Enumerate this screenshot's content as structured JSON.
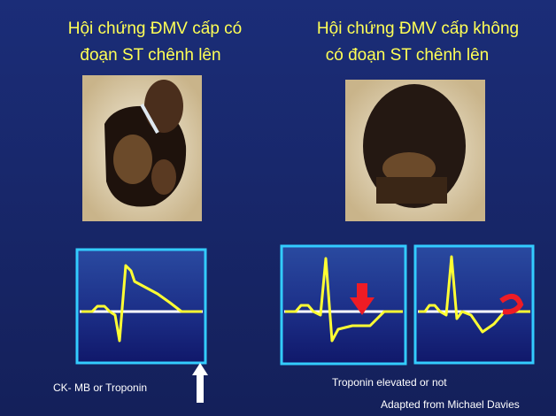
{
  "slide": {
    "left": {
      "title_lines": [
        "Hội chứng ĐMV cấp có",
        "đoạn ST chênh lên"
      ],
      "caption": "CK-  MB or Troponin"
    },
    "right": {
      "title_lines": [
        "Hội chứng ĐMV cấp không",
        "có đoạn ST chênh lên"
      ],
      "caption": "Troponin elevated or not"
    },
    "credit": "Adapted from Michael Davies"
  }
}
